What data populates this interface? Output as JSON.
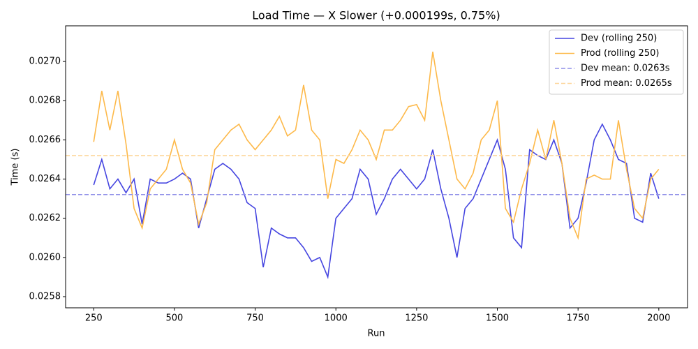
{
  "chart_data": {
    "type": "line",
    "title": "Load Time — X Slower (+0.000199s, 0.75%)",
    "x_label": "Run",
    "y_label": "Time (s)",
    "x": [
      250,
      275,
      300,
      325,
      350,
      375,
      400,
      425,
      450,
      475,
      500,
      525,
      550,
      575,
      600,
      625,
      650,
      675,
      700,
      725,
      750,
      775,
      800,
      825,
      850,
      875,
      900,
      925,
      950,
      975,
      1000,
      1025,
      1050,
      1075,
      1100,
      1125,
      1150,
      1175,
      1200,
      1225,
      1250,
      1275,
      1300,
      1325,
      1350,
      1375,
      1400,
      1425,
      1450,
      1475,
      1500,
      1525,
      1550,
      1575,
      1600,
      1625,
      1650,
      1675,
      1700,
      1725,
      1750,
      1775,
      1800,
      1825,
      1850,
      1875,
      1900,
      1925,
      1950,
      1975,
      2000
    ],
    "series": [
      {
        "name": "Dev (rolling 250)",
        "color": "#4545e0",
        "values": [
          0.02637,
          0.0265,
          0.02635,
          0.0264,
          0.02633,
          0.0264,
          0.02617,
          0.0264,
          0.02638,
          0.02638,
          0.0264,
          0.02643,
          0.0264,
          0.02615,
          0.0263,
          0.02645,
          0.02648,
          0.02645,
          0.0264,
          0.02628,
          0.02625,
          0.02595,
          0.02615,
          0.02612,
          0.0261,
          0.0261,
          0.02605,
          0.02598,
          0.026,
          0.0259,
          0.0262,
          0.02625,
          0.0263,
          0.02645,
          0.0264,
          0.02622,
          0.0263,
          0.0264,
          0.02645,
          0.0264,
          0.02635,
          0.0264,
          0.02655,
          0.02635,
          0.0262,
          0.026,
          0.02625,
          0.0263,
          0.0264,
          0.0265,
          0.0266,
          0.02645,
          0.0261,
          0.02605,
          0.02655,
          0.02652,
          0.0265,
          0.0266,
          0.02648,
          0.02615,
          0.0262,
          0.02638,
          0.0266,
          0.02668,
          0.0266,
          0.0265,
          0.02648,
          0.0262,
          0.02618,
          0.02643,
          0.0263
        ]
      },
      {
        "name": "Prod (rolling 250)",
        "color": "#fdb94a",
        "values": [
          0.02659,
          0.02685,
          0.02665,
          0.02685,
          0.02658,
          0.02625,
          0.02615,
          0.02635,
          0.0264,
          0.02645,
          0.0266,
          0.02645,
          0.02638,
          0.02617,
          0.02628,
          0.02655,
          0.0266,
          0.02665,
          0.02668,
          0.0266,
          0.02655,
          0.0266,
          0.02665,
          0.02672,
          0.02662,
          0.02665,
          0.02688,
          0.02665,
          0.0266,
          0.0263,
          0.0265,
          0.02648,
          0.02655,
          0.02665,
          0.0266,
          0.0265,
          0.02665,
          0.02665,
          0.0267,
          0.02677,
          0.02678,
          0.0267,
          0.02705,
          0.0268,
          0.0266,
          0.0264,
          0.02635,
          0.02643,
          0.0266,
          0.02665,
          0.0268,
          0.02625,
          0.02618,
          0.02635,
          0.02648,
          0.02665,
          0.0265,
          0.0267,
          0.02648,
          0.0262,
          0.0261,
          0.0264,
          0.02642,
          0.0264,
          0.0264,
          0.0267,
          0.02645,
          0.02625,
          0.0262,
          0.0264,
          0.02645
        ]
      },
      {
        "name": "Dev mean: 0.0263s",
        "color": "#8f8fe8",
        "value": 0.026321,
        "dashed": true
      },
      {
        "name": "Prod mean: 0.0265s",
        "color": "#fdd69a",
        "value": 0.02652,
        "dashed": true
      }
    ],
    "xlim": [
      163,
      2089
    ],
    "ylim": [
      0.025743,
      0.027182
    ],
    "xticks": [
      250,
      500,
      750,
      1000,
      1250,
      1500,
      1750,
      2000
    ],
    "yticks": [
      0.0258,
      {
        "value": 0.026,
        "label": "0.0260"
      },
      0.0262,
      0.0264,
      0.0266,
      0.0268,
      {
        "value": 0.027,
        "label": "0.0270"
      }
    ],
    "legend": "upper right"
  }
}
